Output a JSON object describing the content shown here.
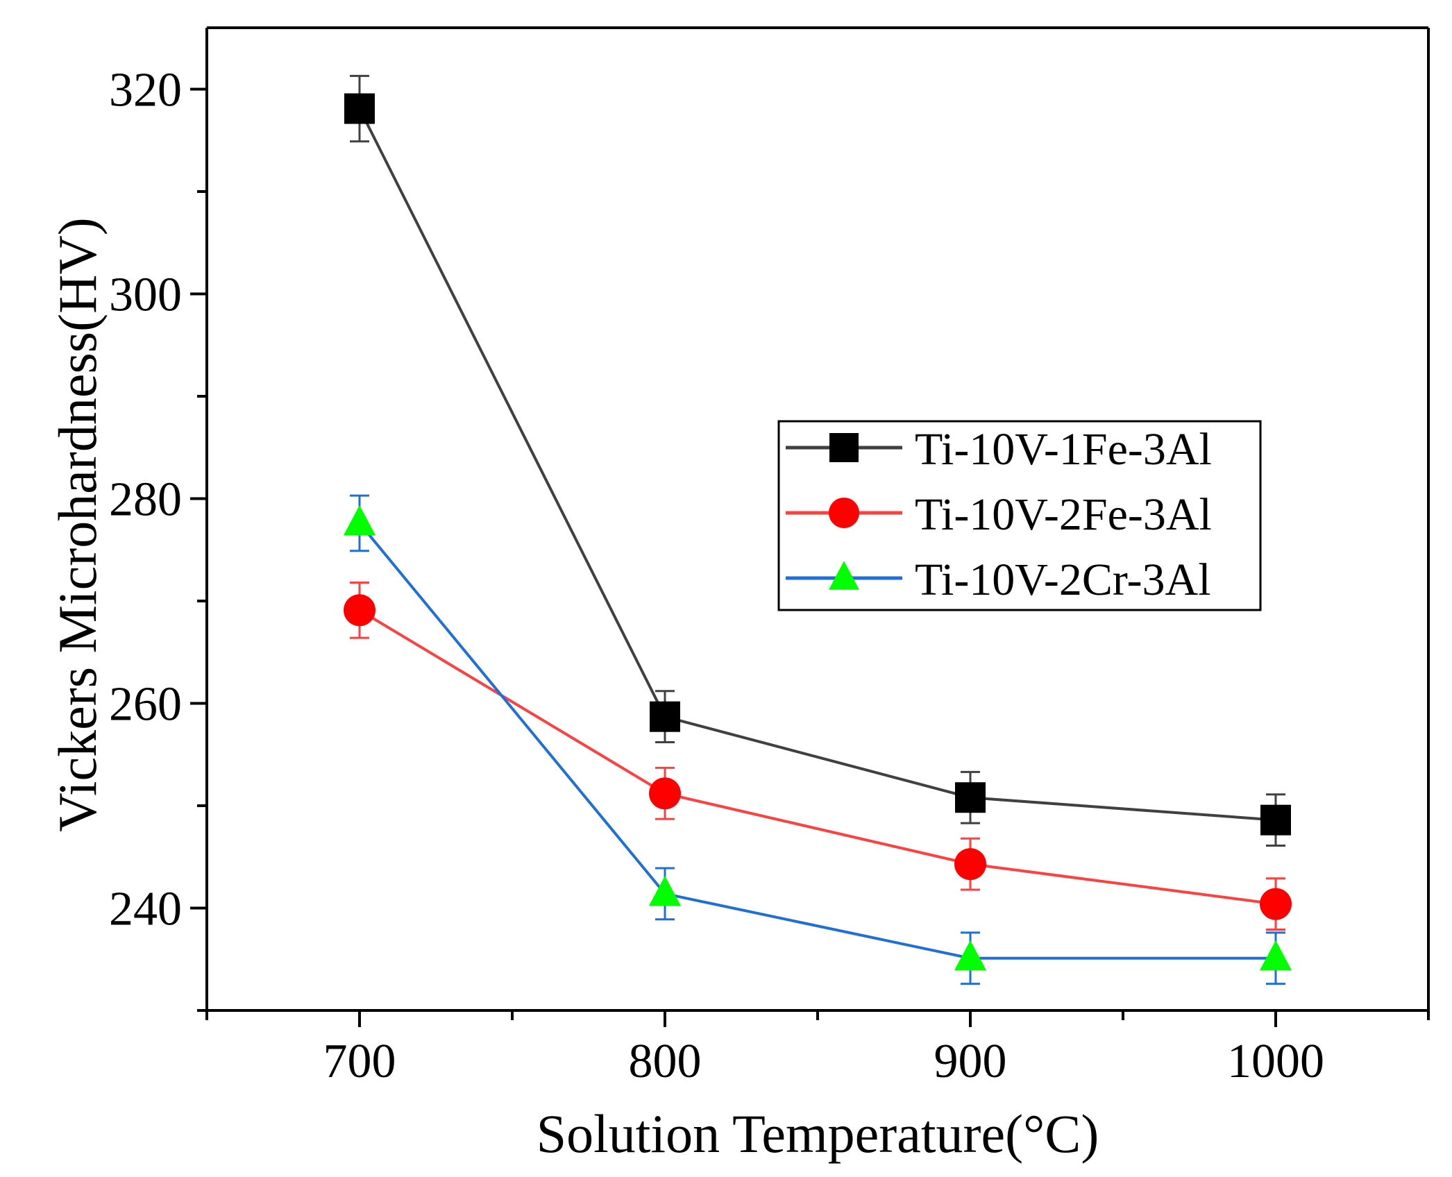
{
  "chart_data": {
    "type": "line",
    "title": "",
    "xlabel": "Solution Temperature(°C)",
    "ylabel": "Vickers Microhardness(HV)",
    "x": [
      700,
      800,
      900,
      1000
    ],
    "x_tick_labels": [
      "700",
      "800",
      "900",
      "1000"
    ],
    "xlim": [
      650,
      1050
    ],
    "y_ticks": [
      240,
      260,
      280,
      300,
      320
    ],
    "y_tick_labels": [
      "240",
      "260",
      "280",
      "300",
      "320"
    ],
    "ylim": [
      230,
      326
    ],
    "grid": false,
    "legend_position": "center-right",
    "series": [
      {
        "name": "Ti-10V-1Fe-3Al",
        "marker": "square",
        "line_color": "#404040",
        "marker_color": "#000000",
        "values": [
          318.1,
          258.7,
          250.8,
          248.6
        ],
        "errors": [
          3.2,
          2.5,
          2.5,
          2.5
        ]
      },
      {
        "name": "Ti-10V-2Fe-3Al",
        "marker": "circle",
        "line_color": "#ff4040",
        "marker_color": "#ff0000",
        "values": [
          269.1,
          251.2,
          244.3,
          240.4
        ],
        "errors": [
          2.7,
          2.5,
          2.5,
          2.5
        ]
      },
      {
        "name": "Ti-10V-2Cr-3Al",
        "marker": "triangle",
        "line_color": "#1f6fd8",
        "marker_color": "#00ff00",
        "values": [
          277.6,
          241.4,
          235.1,
          235.1
        ],
        "errors": [
          2.7,
          2.5,
          2.5,
          2.5
        ]
      }
    ]
  }
}
